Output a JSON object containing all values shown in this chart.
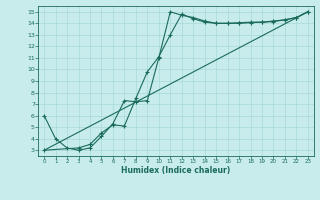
{
  "xlabel": "Humidex (Indice chaleur)",
  "bg_color": "#c8ecec",
  "grid_color": "#a8d8d8",
  "line_color": "#1a6b5a",
  "xlim": [
    -0.5,
    23.5
  ],
  "ylim": [
    2.5,
    15.5
  ],
  "xticks": [
    0,
    1,
    2,
    3,
    4,
    5,
    6,
    7,
    8,
    9,
    10,
    11,
    12,
    13,
    14,
    15,
    16,
    17,
    18,
    19,
    20,
    21,
    22,
    23
  ],
  "yticks": [
    3,
    4,
    5,
    6,
    7,
    8,
    9,
    10,
    11,
    12,
    13,
    14,
    15
  ],
  "line1_x": [
    0,
    1,
    2,
    3,
    4,
    5,
    6,
    7,
    8,
    9,
    10,
    11,
    12,
    13,
    14,
    15,
    16,
    17,
    18,
    19,
    20,
    21,
    22,
    23
  ],
  "line1_y": [
    6,
    4,
    3.2,
    3,
    3.2,
    4.2,
    5.3,
    7.3,
    7.2,
    7.3,
    11.0,
    15.0,
    14.7,
    14.5,
    14.2,
    14.0,
    14.0,
    14.05,
    14.1,
    14.1,
    14.15,
    14.3,
    14.5,
    15.0
  ],
  "line2_x": [
    0,
    3,
    4,
    5,
    6,
    7,
    8,
    9,
    10,
    11,
    12,
    13,
    14,
    15,
    16,
    17,
    18,
    19,
    20,
    21,
    22,
    23
  ],
  "line2_y": [
    3.0,
    3.2,
    3.5,
    4.5,
    5.2,
    5.1,
    7.5,
    9.8,
    11.1,
    13.0,
    14.8,
    14.4,
    14.1,
    14.0,
    14.0,
    14.0,
    14.05,
    14.1,
    14.2,
    14.3,
    14.5,
    15.0
  ],
  "line3_x": [
    0,
    23
  ],
  "line3_y": [
    3.0,
    15.0
  ]
}
